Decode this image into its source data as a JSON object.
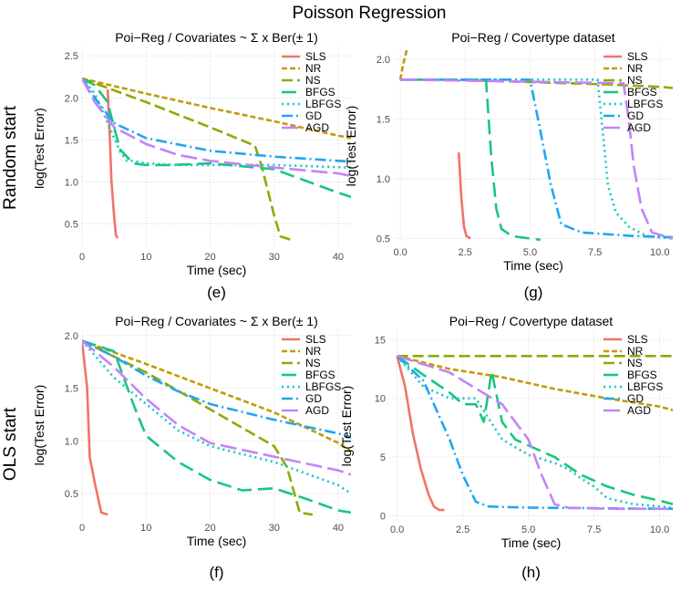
{
  "figure_title": "Poisson Regression",
  "row_labels": [
    "Random start",
    "OLS start"
  ],
  "colors": {
    "SLS": "#F0736A",
    "NR": "#C49A00",
    "NS": "#8FAA00",
    "BFGS": "#19C67E",
    "LBFGS": "#10C6C6",
    "GD": "#1FA6F2",
    "AGD": "#C483F7",
    "grid": "#d9d9d9"
  },
  "chart_data": [
    {
      "id": "e",
      "type": "line",
      "title": "Poi−Reg / Covariates ~ Σ x Ber(± 1)",
      "xlabel": "Time (sec)",
      "ylabel": "log(Test Error)",
      "tag": "(e)",
      "xlim": [
        0,
        42
      ],
      "ylim": [
        0.2,
        2.6
      ],
      "xticks": [
        0,
        10,
        20,
        30,
        40
      ],
      "yticks": [
        0.5,
        1.0,
        1.5,
        2.0,
        2.5
      ],
      "xtick_labels": [
        "0",
        "10",
        "20",
        "30",
        "40"
      ],
      "ytick_labels": [
        "0.5",
        "1.0",
        "1.5",
        "2.0",
        "2.5"
      ],
      "grid": true,
      "legend_position": "top-right",
      "series": [
        {
          "name": "SLS",
          "x": [
            4.0,
            4.3,
            4.6,
            5.0,
            5.3,
            5.6
          ],
          "y": [
            2.1,
            1.6,
            1.0,
            0.6,
            0.36,
            0.33
          ]
        },
        {
          "name": "NR",
          "x": [
            0,
            10,
            20,
            30,
            40,
            42
          ],
          "y": [
            2.23,
            2.05,
            1.88,
            1.72,
            1.55,
            1.52
          ]
        },
        {
          "name": "NS",
          "x": [
            0,
            10,
            20,
            27,
            28,
            30,
            31,
            33
          ],
          "y": [
            2.23,
            1.95,
            1.65,
            1.43,
            1.2,
            0.6,
            0.35,
            0.3
          ]
        },
        {
          "name": "BFGS",
          "x": [
            0,
            2,
            4,
            5,
            6,
            8,
            10,
            14,
            20,
            30,
            40,
            42
          ],
          "y": [
            2.23,
            2.15,
            1.95,
            1.65,
            1.38,
            1.22,
            1.2,
            1.2,
            1.22,
            1.15,
            0.87,
            0.82
          ]
        },
        {
          "name": "LBFGS",
          "x": [
            0,
            2,
            4,
            6,
            7,
            8,
            10,
            15,
            20,
            30,
            42
          ],
          "y": [
            2.23,
            2.05,
            1.7,
            1.35,
            1.25,
            1.25,
            1.22,
            1.2,
            1.2,
            1.2,
            1.17
          ]
        },
        {
          "name": "GD",
          "x": [
            0,
            2,
            5,
            10,
            20,
            30,
            40,
            42
          ],
          "y": [
            2.23,
            2.0,
            1.7,
            1.52,
            1.37,
            1.3,
            1.25,
            1.24
          ]
        },
        {
          "name": "AGD",
          "x": [
            0,
            2,
            5,
            10,
            15,
            20,
            30,
            40,
            42
          ],
          "y": [
            2.23,
            1.95,
            1.65,
            1.45,
            1.32,
            1.25,
            1.17,
            1.1,
            1.07
          ]
        }
      ]
    },
    {
      "id": "g",
      "type": "line",
      "title": "Poi−Reg / Covertype dataset",
      "xlabel": "Time (sec)",
      "ylabel": "log(Test Error)",
      "tag": "(g)",
      "xlim": [
        -0.25,
        10.5
      ],
      "ylim": [
        0.45,
        2.1
      ],
      "xticks": [
        0,
        2.5,
        5,
        7.5,
        10
      ],
      "yticks": [
        0.5,
        1.0,
        1.5,
        2.0
      ],
      "xtick_labels": [
        "0.0",
        "2.5",
        "5.0",
        "7.5",
        "10.0"
      ],
      "ytick_labels": [
        "0.5",
        "1.0",
        "1.5",
        "2.0"
      ],
      "grid": true,
      "legend_position": "top-right",
      "series": [
        {
          "name": "SLS",
          "x": [
            2.25,
            2.35,
            2.45,
            2.55,
            2.7
          ],
          "y": [
            1.22,
            0.85,
            0.6,
            0.52,
            0.5
          ]
        },
        {
          "name": "NR",
          "x": [
            0,
            0.1,
            0.25
          ],
          "y": [
            1.83,
            1.95,
            2.08
          ]
        },
        {
          "name": "NS",
          "x": [
            0,
            2,
            5,
            8,
            10,
            10.5
          ],
          "y": [
            1.83,
            1.83,
            1.81,
            1.79,
            1.77,
            1.76
          ]
        },
        {
          "name": "BFGS",
          "x": [
            0,
            3.3,
            3.5,
            3.7,
            3.9,
            4.3,
            5,
            5.4
          ],
          "y": [
            1.83,
            1.83,
            1.2,
            0.75,
            0.58,
            0.52,
            0.5,
            0.49
          ]
        },
        {
          "name": "LBFGS",
          "x": [
            0,
            7.6,
            7.8,
            8.0,
            8.3,
            8.8,
            9.5,
            10.5
          ],
          "y": [
            1.83,
            1.83,
            1.4,
            0.95,
            0.72,
            0.6,
            0.52,
            0.5
          ]
        },
        {
          "name": "GD",
          "x": [
            0,
            5.0,
            5.4,
            5.8,
            6.2,
            7,
            9,
            10.5
          ],
          "y": [
            1.83,
            1.83,
            1.4,
            0.95,
            0.62,
            0.55,
            0.52,
            0.51
          ]
        },
        {
          "name": "AGD",
          "x": [
            0,
            8.6,
            8.8,
            9.0,
            9.3,
            9.7,
            10.5
          ],
          "y": [
            1.83,
            1.8,
            1.5,
            1.1,
            0.75,
            0.55,
            0.5
          ]
        }
      ]
    },
    {
      "id": "f",
      "type": "line",
      "title": "Poi−Reg / Covariates ~ Σ x Ber(± 1)",
      "xlabel": "Time (sec)",
      "ylabel": "log(Test Error)",
      "tag": "(f)",
      "xlim": [
        0,
        42
      ],
      "ylim": [
        0.25,
        2.05
      ],
      "xticks": [
        0,
        10,
        20,
        30,
        40
      ],
      "yticks": [
        0.5,
        1.0,
        1.5,
        2.0
      ],
      "xtick_labels": [
        "0",
        "10",
        "20",
        "30",
        "40"
      ],
      "ytick_labels": [
        "0.5",
        "1.0",
        "1.5",
        "2.0"
      ],
      "grid": true,
      "legend_position": "top-right",
      "series": [
        {
          "name": "SLS",
          "x": [
            0,
            0.8,
            1.2,
            2,
            3,
            4
          ],
          "y": [
            1.95,
            1.5,
            0.85,
            0.6,
            0.32,
            0.3
          ]
        },
        {
          "name": "NR",
          "x": [
            0,
            10,
            20,
            30,
            40,
            42
          ],
          "y": [
            1.95,
            1.73,
            1.5,
            1.27,
            0.98,
            0.9
          ]
        },
        {
          "name": "NS",
          "x": [
            0,
            10,
            20,
            30,
            32,
            34,
            36
          ],
          "y": [
            1.95,
            1.65,
            1.3,
            0.95,
            0.75,
            0.32,
            0.3
          ]
        },
        {
          "name": "BFGS",
          "x": [
            0,
            5,
            8,
            10,
            15,
            20,
            25,
            30,
            35,
            40,
            42
          ],
          "y": [
            1.95,
            1.85,
            1.35,
            1.05,
            0.8,
            0.63,
            0.53,
            0.55,
            0.45,
            0.34,
            0.32
          ]
        },
        {
          "name": "LBFGS",
          "x": [
            0,
            5,
            10,
            15,
            20,
            30,
            40,
            42
          ],
          "y": [
            1.95,
            1.6,
            1.35,
            1.1,
            0.95,
            0.8,
            0.58,
            0.5
          ]
        },
        {
          "name": "GD",
          "x": [
            0,
            5,
            10,
            15,
            20,
            30,
            40,
            42
          ],
          "y": [
            1.95,
            1.8,
            1.62,
            1.47,
            1.35,
            1.2,
            1.07,
            1.03
          ]
        },
        {
          "name": "AGD",
          "x": [
            0,
            5,
            10,
            15,
            20,
            30,
            40,
            42
          ],
          "y": [
            1.95,
            1.7,
            1.4,
            1.15,
            0.98,
            0.85,
            0.72,
            0.68
          ]
        }
      ]
    },
    {
      "id": "h",
      "type": "line",
      "title": "Poi−Reg / Covertype dataset",
      "xlabel": "Time (sec)",
      "ylabel": "log(Test Error)",
      "tag": "(h)",
      "xlim": [
        -0.3,
        10.5
      ],
      "ylim": [
        -0.5,
        15.8
      ],
      "xticks": [
        0,
        2.5,
        5,
        7.5,
        10
      ],
      "yticks": [
        0,
        5,
        10,
        15
      ],
      "xtick_labels": [
        "0.0",
        "2.5",
        "5.0",
        "7.5",
        "10.0"
      ],
      "ytick_labels": [
        "0",
        "5",
        "10",
        "15"
      ],
      "grid": true,
      "legend_position": "top-right",
      "series": [
        {
          "name": "SLS",
          "x": [
            0,
            0.3,
            0.6,
            0.9,
            1.2,
            1.4,
            1.6,
            1.8
          ],
          "y": [
            13.6,
            11,
            7,
            4,
            1.8,
            0.8,
            0.5,
            0.5
          ]
        },
        {
          "name": "NR",
          "x": [
            0,
            2,
            4,
            6,
            8,
            10,
            10.5
          ],
          "y": [
            13.6,
            12.5,
            11.8,
            10.8,
            10.0,
            9.3,
            9.0
          ]
        },
        {
          "name": "NS",
          "x": [
            0,
            10.5
          ],
          "y": [
            13.6,
            13.6
          ]
        },
        {
          "name": "BFGS",
          "x": [
            0,
            1,
            2,
            2.5,
            3,
            3.3,
            3.6,
            4,
            4.5,
            5,
            6,
            7,
            8,
            9,
            10,
            10.5
          ],
          "y": [
            13.6,
            12,
            10.5,
            9.5,
            9.5,
            8,
            12.3,
            8,
            6.5,
            6,
            5,
            3.5,
            2.5,
            1.8,
            1.3,
            1.0
          ]
        },
        {
          "name": "LBFGS",
          "x": [
            0,
            1,
            2,
            3,
            4,
            5,
            6,
            6.5,
            7,
            7.5,
            8,
            9,
            10.5
          ],
          "y": [
            13.6,
            11,
            10,
            10,
            6.5,
            5.2,
            4.5,
            4,
            3.2,
            2.5,
            1.5,
            1.0,
            0.7
          ]
        },
        {
          "name": "GD",
          "x": [
            0,
            1,
            1.5,
            2,
            2.5,
            3,
            3.5,
            5,
            10.5
          ],
          "y": [
            13.6,
            11.5,
            9,
            6.5,
            3.5,
            1.2,
            0.8,
            0.7,
            0.6
          ]
        },
        {
          "name": "AGD",
          "x": [
            0,
            2,
            4,
            5,
            5.5,
            6,
            6.5,
            8,
            10.5
          ],
          "y": [
            13.6,
            12.2,
            9.5,
            6.5,
            3.5,
            1.0,
            0.7,
            0.6,
            0.6
          ]
        }
      ]
    }
  ]
}
